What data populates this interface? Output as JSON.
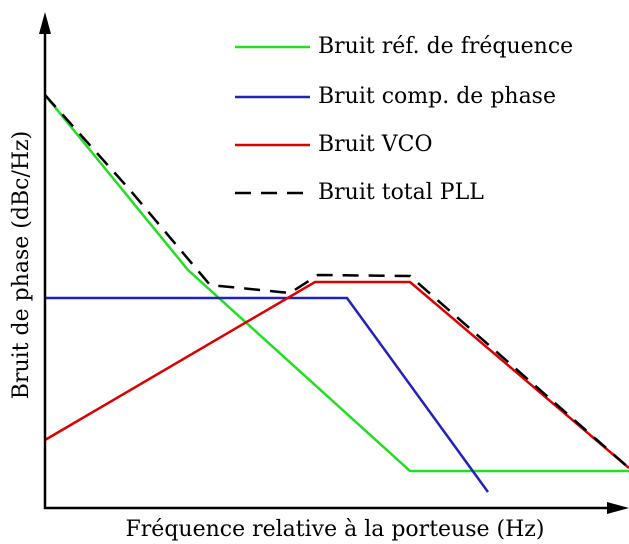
{
  "legend": [
    "Bruit réf. de fréquence",
    "Bruit comp. de phase",
    "Bruit VCO",
    "Bruit total PLL"
  ],
  "axes": {
    "y_label": "Bruit de phase (dBc/Hz)",
    "x_label": "Fréquence relative à la porteuse (Hz)"
  }
}
